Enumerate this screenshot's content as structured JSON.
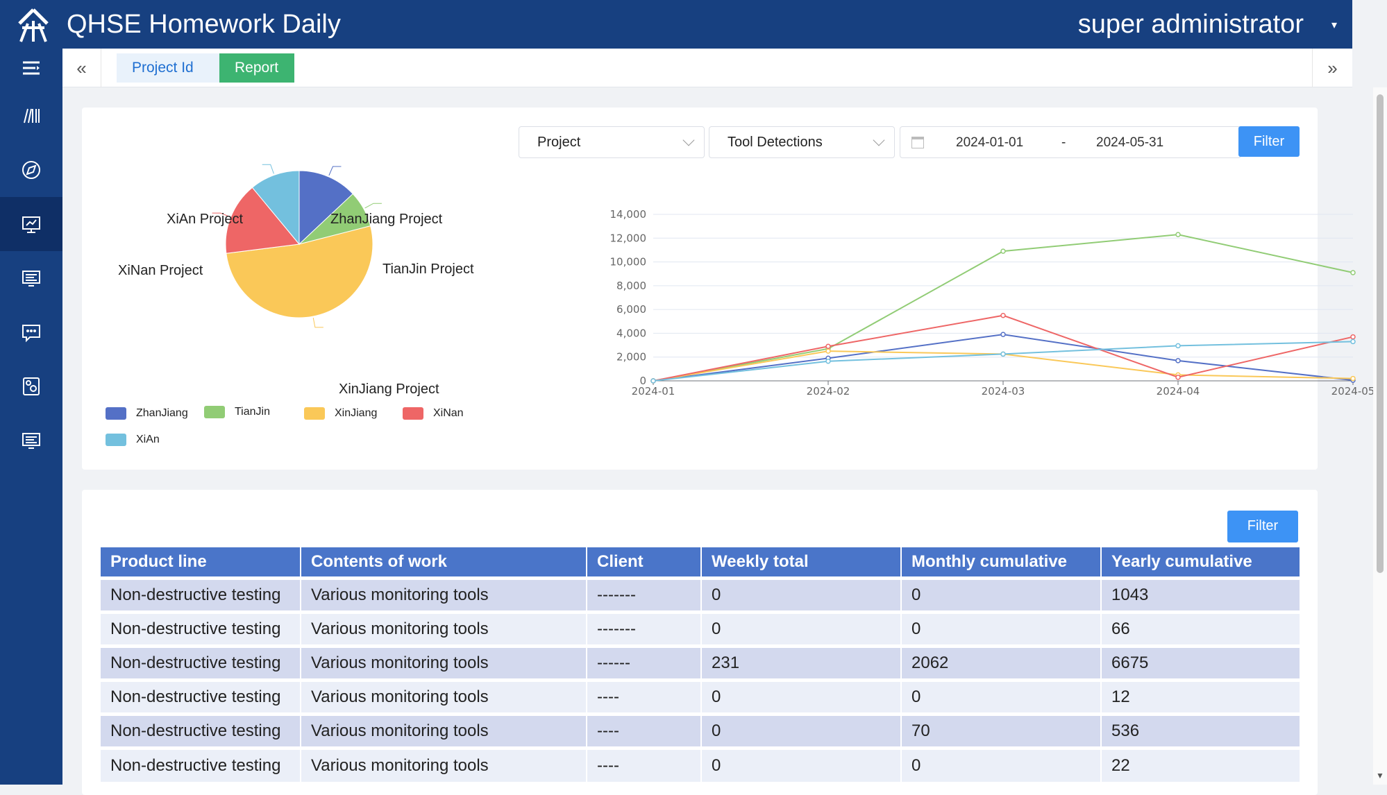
{
  "header": {
    "app_title": "QHSE Homework Daily",
    "user_name": "super administrator"
  },
  "sidebar": {
    "items": [
      {
        "icon": "menu-icon"
      },
      {
        "icon": "books-icon"
      },
      {
        "icon": "compass-icon"
      },
      {
        "icon": "presentation-icon",
        "active": true
      },
      {
        "icon": "monitor-icon"
      },
      {
        "icon": "message-icon"
      },
      {
        "icon": "gallery-icon"
      },
      {
        "icon": "monitor-icon"
      }
    ]
  },
  "tabs": {
    "project_label": "Project  Id",
    "report_label": "Report"
  },
  "filters": {
    "project_select": "Project",
    "metric_select": "Tool Detections",
    "date_start": "2024-01-01",
    "date_separator": "-",
    "date_end": "2024-05-31",
    "filter_label": "Filter"
  },
  "chart_data": [
    {
      "type": "pie",
      "labels": [
        "ZhanJiang Project",
        "TianJin Project",
        "XinJiang Project",
        "XiNan Project",
        "XiAn Project"
      ],
      "legend": [
        "ZhanJiang",
        "TianJin",
        "XinJiang",
        "XiNan",
        "XiAn"
      ],
      "values": [
        13,
        8,
        52,
        16,
        11
      ],
      "colors": [
        "#5470c6",
        "#91cc75",
        "#fac858",
        "#ee6666",
        "#73c0de"
      ]
    },
    {
      "type": "line",
      "x": [
        "2024-01",
        "2024-02",
        "2024-03",
        "2024-04",
        "2024-05"
      ],
      "ylim": [
        0,
        14000
      ],
      "yticks": [
        "0",
        "2,000",
        "4,000",
        "6,000",
        "8,000",
        "10,000",
        "12,000",
        "14,000"
      ],
      "grid": true,
      "series": [
        {
          "color": "#5470c6",
          "values": [
            0,
            1900,
            3900,
            1700,
            50
          ]
        },
        {
          "color": "#91cc75",
          "values": [
            0,
            2700,
            10900,
            12300,
            9100
          ]
        },
        {
          "color": "#fac858",
          "values": [
            0,
            2500,
            2250,
            500,
            200
          ]
        },
        {
          "color": "#ee6666",
          "values": [
            0,
            2900,
            5500,
            300,
            3700
          ]
        },
        {
          "color": "#73c0de",
          "values": [
            0,
            1650,
            2250,
            2950,
            3300
          ]
        }
      ]
    }
  ],
  "table": {
    "filter_label": "Filter",
    "headers": [
      "Product line",
      "Contents of work",
      "Client",
      "Weekly total",
      "Monthly cumulative",
      "Yearly cumulative"
    ],
    "rows": [
      [
        "Non-destructive testing",
        "Various monitoring tools",
        "-------",
        "0",
        "0",
        "1043"
      ],
      [
        "Non-destructive testing",
        "Various monitoring tools",
        "-------",
        "0",
        "0",
        "66"
      ],
      [
        "Non-destructive testing",
        "Various monitoring tools",
        "------",
        "231",
        "2062",
        "6675"
      ],
      [
        "Non-destructive testing",
        "Various monitoring tools",
        "----",
        "0",
        "0",
        "12"
      ],
      [
        "Non-destructive testing",
        "Various monitoring tools",
        "----",
        "0",
        "70",
        "536"
      ],
      [
        "Non-destructive testing",
        "Various monitoring tools",
        "----",
        "0",
        "0",
        "22"
      ]
    ]
  }
}
